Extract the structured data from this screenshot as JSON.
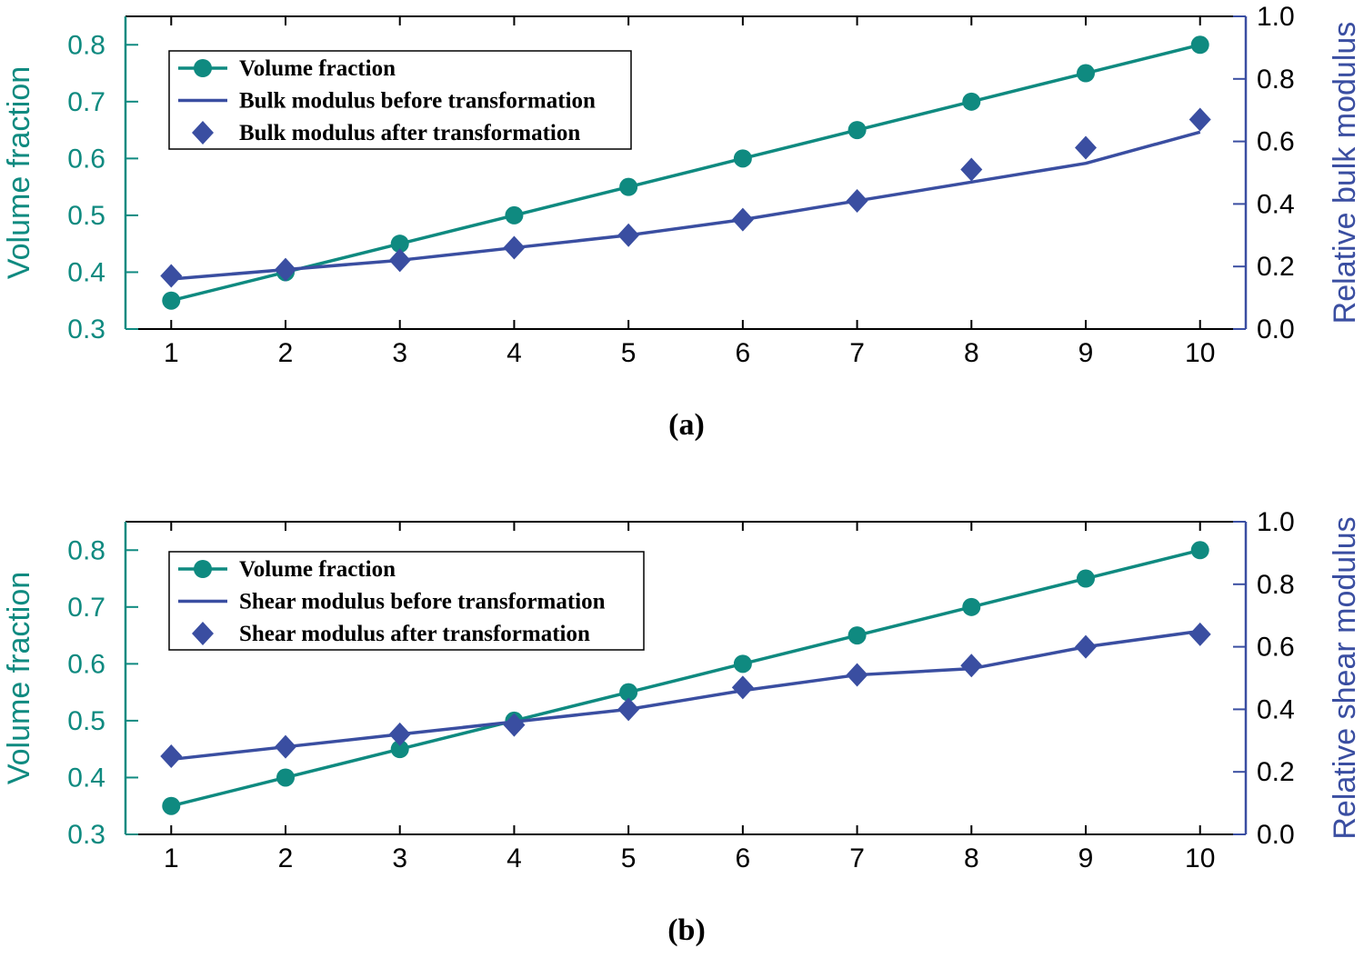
{
  "chart_data": [
    {
      "type": "line",
      "panel_label": "(a)",
      "x": [
        1,
        2,
        3,
        4,
        5,
        6,
        7,
        8,
        9,
        10
      ],
      "xticks": [
        "1",
        "2",
        "3",
        "4",
        "5",
        "6",
        "7",
        "8",
        "9",
        "10"
      ],
      "xlim": [
        0.6,
        10.4
      ],
      "left_axis": {
        "label": "Volume fraction",
        "ylim": [
          0.3,
          0.85
        ],
        "ticks": [
          "0.3",
          "0.4",
          "0.5",
          "0.6",
          "0.7",
          "0.8"
        ],
        "tick_values": [
          0.3,
          0.4,
          0.5,
          0.6,
          0.7,
          0.8
        ]
      },
      "right_axis": {
        "label": "Relative bulk modulus",
        "ylim": [
          0.0,
          1.0
        ],
        "ticks": [
          "0.0",
          "0.2",
          "0.4",
          "0.6",
          "0.8",
          "1.0"
        ],
        "tick_values": [
          0.0,
          0.2,
          0.4,
          0.6,
          0.8,
          1.0
        ]
      },
      "series": [
        {
          "name": "Volume fraction",
          "axis": "left",
          "style": "line+circle",
          "values": [
            0.35,
            0.4,
            0.45,
            0.5,
            0.55,
            0.6,
            0.65,
            0.7,
            0.75,
            0.8
          ]
        },
        {
          "name": "Bulk modulus before transformation",
          "axis": "right",
          "style": "line",
          "values": [
            0.16,
            0.19,
            0.22,
            0.26,
            0.3,
            0.35,
            0.41,
            0.47,
            0.53,
            0.63
          ]
        },
        {
          "name": "Bulk modulus after transformation",
          "axis": "right",
          "style": "diamond",
          "values": [
            0.17,
            0.19,
            0.22,
            0.26,
            0.3,
            0.35,
            0.41,
            0.51,
            0.58,
            0.67
          ]
        }
      ],
      "legend": [
        "Volume fraction",
        "Bulk modulus before transformation",
        "Bulk modulus after transformation"
      ],
      "legend_position": "top-left"
    },
    {
      "type": "line",
      "panel_label": "(b)",
      "x": [
        1,
        2,
        3,
        4,
        5,
        6,
        7,
        8,
        9,
        10
      ],
      "xticks": [
        "1",
        "2",
        "3",
        "4",
        "5",
        "6",
        "7",
        "8",
        "9",
        "10"
      ],
      "xlim": [
        0.6,
        10.4
      ],
      "left_axis": {
        "label": "Volume fraction",
        "ylim": [
          0.3,
          0.85
        ],
        "ticks": [
          "0.3",
          "0.4",
          "0.5",
          "0.6",
          "0.7",
          "0.8"
        ],
        "tick_values": [
          0.3,
          0.4,
          0.5,
          0.6,
          0.7,
          0.8
        ]
      },
      "right_axis": {
        "label": "Relative shear modulus",
        "ylim": [
          0.0,
          1.0
        ],
        "ticks": [
          "0.0",
          "0.2",
          "0.4",
          "0.6",
          "0.8",
          "1.0"
        ],
        "tick_values": [
          0.0,
          0.2,
          0.4,
          0.6,
          0.8,
          1.0
        ]
      },
      "series": [
        {
          "name": "Volume fraction",
          "axis": "left",
          "style": "line+circle",
          "values": [
            0.35,
            0.4,
            0.45,
            0.5,
            0.55,
            0.6,
            0.65,
            0.7,
            0.75,
            0.8
          ]
        },
        {
          "name": "Shear modulus before transformation",
          "axis": "right",
          "style": "line",
          "values": [
            0.24,
            0.28,
            0.32,
            0.36,
            0.4,
            0.46,
            0.51,
            0.53,
            0.6,
            0.65
          ]
        },
        {
          "name": "Shear modulus after transformation",
          "axis": "right",
          "style": "diamond",
          "values": [
            0.25,
            0.28,
            0.32,
            0.35,
            0.4,
            0.47,
            0.51,
            0.54,
            0.6,
            0.64
          ]
        }
      ],
      "legend": [
        "Volume fraction",
        "Shear modulus before transformation",
        "Shear modulus after transformation"
      ],
      "legend_position": "top-left"
    }
  ],
  "colors": {
    "volume": "#0f8a80",
    "modulus": "#3a4ea1",
    "axis": "#000000"
  }
}
